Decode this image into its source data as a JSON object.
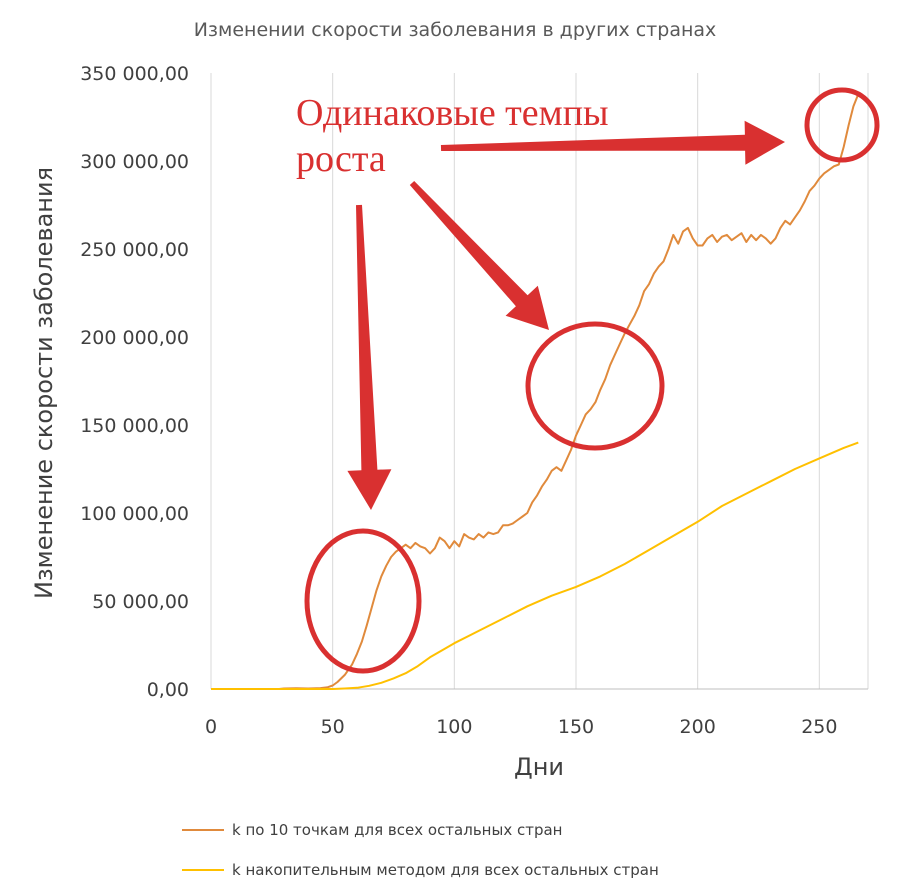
{
  "chart_data": {
    "type": "line",
    "title": "Изменении скорости заболевания в других странах",
    "xlabel": "Дни",
    "ylabel": "Изменение скорости заболевания",
    "xlim": [
      0,
      270
    ],
    "ylim": [
      0,
      350000
    ],
    "x_ticks": [
      "0",
      "50",
      "100",
      "150",
      "200",
      "250"
    ],
    "y_ticks": [
      "0,00",
      "50 000,00",
      "100 000,00",
      "150 000,00",
      "200 000,00",
      "250 000,00",
      "300 000,00",
      "350 000,00"
    ],
    "grid": "vertical",
    "legend_position": "bottom",
    "series": [
      {
        "name": "k по 10 точкам для всех остальных стран",
        "color": "#e08a3c",
        "points": [
          [
            0,
            0
          ],
          [
            28,
            0
          ],
          [
            30,
            300
          ],
          [
            35,
            400
          ],
          [
            40,
            300
          ],
          [
            45,
            500
          ],
          [
            48,
            1000
          ],
          [
            50,
            2000
          ],
          [
            52,
            4000
          ],
          [
            55,
            8000
          ],
          [
            58,
            14000
          ],
          [
            60,
            20000
          ],
          [
            62,
            27000
          ],
          [
            64,
            36000
          ],
          [
            66,
            46000
          ],
          [
            68,
            56000
          ],
          [
            70,
            64000
          ],
          [
            72,
            70000
          ],
          [
            74,
            75000
          ],
          [
            76,
            78000
          ],
          [
            78,
            80000
          ],
          [
            80,
            82000
          ],
          [
            82,
            80000
          ],
          [
            84,
            83000
          ],
          [
            86,
            81000
          ],
          [
            88,
            80000
          ],
          [
            90,
            77000
          ],
          [
            92,
            80000
          ],
          [
            94,
            86000
          ],
          [
            96,
            84000
          ],
          [
            98,
            80000
          ],
          [
            100,
            84000
          ],
          [
            102,
            81000
          ],
          [
            104,
            88000
          ],
          [
            106,
            86000
          ],
          [
            108,
            85000
          ],
          [
            110,
            88000
          ],
          [
            112,
            86000
          ],
          [
            114,
            89000
          ],
          [
            116,
            88000
          ],
          [
            118,
            89000
          ],
          [
            120,
            93000
          ],
          [
            122,
            93000
          ],
          [
            124,
            94000
          ],
          [
            126,
            96000
          ],
          [
            128,
            98000
          ],
          [
            130,
            100000
          ],
          [
            132,
            106000
          ],
          [
            134,
            110000
          ],
          [
            136,
            115000
          ],
          [
            138,
            119000
          ],
          [
            140,
            124000
          ],
          [
            142,
            126000
          ],
          [
            144,
            124000
          ],
          [
            146,
            130000
          ],
          [
            148,
            136000
          ],
          [
            150,
            144000
          ],
          [
            152,
            150000
          ],
          [
            154,
            156000
          ],
          [
            156,
            159000
          ],
          [
            158,
            163000
          ],
          [
            160,
            170000
          ],
          [
            162,
            176000
          ],
          [
            164,
            184000
          ],
          [
            166,
            190000
          ],
          [
            168,
            196000
          ],
          [
            170,
            202000
          ],
          [
            172,
            207000
          ],
          [
            174,
            212000
          ],
          [
            176,
            218000
          ],
          [
            178,
            226000
          ],
          [
            180,
            230000
          ],
          [
            182,
            236000
          ],
          [
            184,
            240000
          ],
          [
            186,
            243000
          ],
          [
            188,
            250000
          ],
          [
            190,
            258000
          ],
          [
            192,
            253000
          ],
          [
            194,
            260000
          ],
          [
            196,
            262000
          ],
          [
            198,
            256000
          ],
          [
            200,
            252000
          ],
          [
            202,
            252000
          ],
          [
            204,
            256000
          ],
          [
            206,
            258000
          ],
          [
            208,
            254000
          ],
          [
            210,
            257000
          ],
          [
            212,
            258000
          ],
          [
            214,
            255000
          ],
          [
            216,
            257000
          ],
          [
            218,
            259000
          ],
          [
            220,
            254000
          ],
          [
            222,
            258000
          ],
          [
            224,
            255000
          ],
          [
            226,
            258000
          ],
          [
            228,
            256000
          ],
          [
            230,
            253000
          ],
          [
            232,
            256000
          ],
          [
            234,
            262000
          ],
          [
            236,
            266000
          ],
          [
            238,
            264000
          ],
          [
            240,
            268000
          ],
          [
            242,
            272000
          ],
          [
            244,
            277000
          ],
          [
            246,
            283000
          ],
          [
            248,
            286000
          ],
          [
            250,
            290000
          ],
          [
            252,
            293000
          ],
          [
            254,
            295000
          ],
          [
            256,
            297000
          ],
          [
            258,
            298000
          ],
          [
            260,
            308000
          ],
          [
            262,
            320000
          ],
          [
            264,
            331000
          ],
          [
            266,
            338000
          ]
        ]
      },
      {
        "name": "k накопительным методом для всех остальных стран",
        "color": "#ffc000",
        "points": [
          [
            0,
            0
          ],
          [
            50,
            0
          ],
          [
            55,
            300
          ],
          [
            60,
            700
          ],
          [
            65,
            1800
          ],
          [
            70,
            3500
          ],
          [
            75,
            6000
          ],
          [
            80,
            9000
          ],
          [
            85,
            13000
          ],
          [
            90,
            18000
          ],
          [
            95,
            22000
          ],
          [
            100,
            26000
          ],
          [
            110,
            33000
          ],
          [
            120,
            40000
          ],
          [
            130,
            47000
          ],
          [
            140,
            53000
          ],
          [
            150,
            58000
          ],
          [
            160,
            64000
          ],
          [
            170,
            71000
          ],
          [
            180,
            79000
          ],
          [
            190,
            87000
          ],
          [
            200,
            95000
          ],
          [
            210,
            104000
          ],
          [
            220,
            111000
          ],
          [
            230,
            118000
          ],
          [
            240,
            125000
          ],
          [
            250,
            131000
          ],
          [
            260,
            137000
          ],
          [
            266,
            140000
          ]
        ]
      }
    ],
    "annotations": {
      "text": [
        "Одинаковые темпы",
        "роста"
      ],
      "color": "#d93030"
    }
  }
}
